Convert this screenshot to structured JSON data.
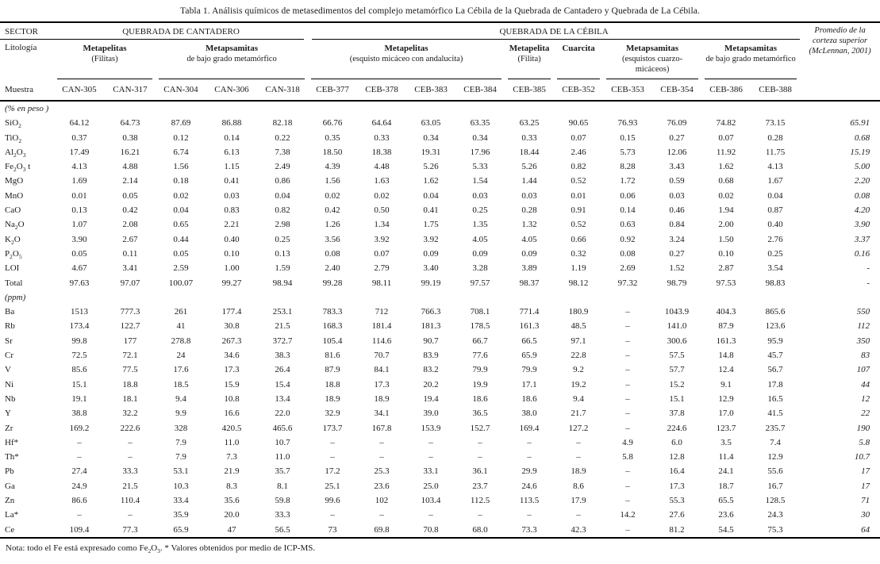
{
  "title": "Tabla 1. Análisis químicos de metasedimentos del complejo metamórfico La Cébila de la Quebrada de Cantadero y Quebrada de La Cébila.",
  "header": {
    "sector_label": "SECTOR",
    "sectors": [
      {
        "label": "QUEBRADA DE CANTADERO",
        "colspan": 5
      },
      {
        "label": "QUEBRADA DE LA CÉBILA",
        "colspan": 10
      }
    ],
    "litologia_label": "Litología",
    "lithologies": [
      {
        "name": "Metapelitas",
        "subtitle": "(Filitas)",
        "colspan": 2
      },
      {
        "name": "Metapsamitas",
        "subtitle": "de bajo grado metamórfico",
        "colspan": 3
      },
      {
        "name": "Metapelitas",
        "subtitle": "(esquisto micáceo con andalucita)",
        "colspan": 4
      },
      {
        "name": "Metapelita",
        "subtitle": "(Filita)",
        "colspan": 1
      },
      {
        "name": "Cuarcita",
        "subtitle": "",
        "colspan": 1
      },
      {
        "name": "Metapsamitas",
        "subtitle": "(esquistos cuarzo-micáceos)",
        "colspan": 2
      },
      {
        "name": "Metapsamitas",
        "subtitle": "de bajo grado metamórfico",
        "colspan": 2
      }
    ],
    "muestra_label": "Muestra",
    "samples": [
      "CAN-305",
      "CAN-317",
      "CAN-304",
      "CAN-306",
      "CAN-318",
      "CEB-377",
      "CEB-378",
      "CEB-383",
      "CEB-384",
      "CEB-385",
      "CEB-352",
      "CEB-353",
      "CEB-354",
      "CEB-386",
      "CEB-388"
    ],
    "average_header": "Promedio de la corteza superior (McLennan, 2001)"
  },
  "rows": [
    {
      "type": "section",
      "label": "(% en peso )"
    },
    {
      "type": "data",
      "label": "SiO₂",
      "values": [
        "64.12",
        "64.73",
        "87.69",
        "86.88",
        "82.18",
        "66.76",
        "64.64",
        "63.05",
        "63.35",
        "63.25",
        "90.65",
        "76.93",
        "76.09",
        "74.82",
        "73.15",
        "65.91"
      ]
    },
    {
      "type": "data",
      "label": "TiO₂",
      "values": [
        "0.37",
        "0.38",
        "0.12",
        "0.14",
        "0.22",
        "0.35",
        "0.33",
        "0.34",
        "0.34",
        "0.33",
        "0.07",
        "0.15",
        "0.27",
        "0.07",
        "0.28",
        "0.68"
      ]
    },
    {
      "type": "data",
      "label": "Al₂O₃",
      "values": [
        "17.49",
        "16.21",
        "6.74",
        "6.13",
        "7.38",
        "18.50",
        "18.38",
        "19.31",
        "17.96",
        "18.44",
        "2.46",
        "5.73",
        "12.06",
        "11.92",
        "11.75",
        "15.19"
      ]
    },
    {
      "type": "data",
      "label": "Fe₂O₃ t",
      "values": [
        "4.13",
        "4.88",
        "1.56",
        "1.15",
        "2.49",
        "4.39",
        "4.48",
        "5.26",
        "5.33",
        "5.26",
        "0.82",
        "8.28",
        "3.43",
        "1.62",
        "4.13",
        "5.00"
      ]
    },
    {
      "type": "data",
      "label": "MgO",
      "values": [
        "1.69",
        "2.14",
        "0.18",
        "0.41",
        "0.86",
        "1.56",
        "1.63",
        "1.62",
        "1.54",
        "1.44",
        "0.52",
        "1.72",
        "0.59",
        "0.68",
        "1.67",
        "2.20"
      ]
    },
    {
      "type": "data",
      "label": "MnO",
      "values": [
        "0.01",
        "0.05",
        "0.02",
        "0.03",
        "0.04",
        "0.02",
        "0.02",
        "0.04",
        "0.03",
        "0.03",
        "0.01",
        "0.06",
        "0.03",
        "0.02",
        "0.04",
        "0.08"
      ]
    },
    {
      "type": "data",
      "label": "CaO",
      "values": [
        "0.13",
        "0.42",
        "0.04",
        "0.83",
        "0.82",
        "0.42",
        "0.50",
        "0.41",
        "0.25",
        "0.28",
        "0.91",
        "0.14",
        "0.46",
        "1.94",
        "0.87",
        "4.20"
      ]
    },
    {
      "type": "data",
      "label": "Na₂O",
      "values": [
        "1.07",
        "2.08",
        "0.65",
        "2.21",
        "2.98",
        "1.26",
        "1.34",
        "1.75",
        "1.35",
        "1.32",
        "0.52",
        "0.63",
        "0.84",
        "2.00",
        "0.40",
        "3.90"
      ]
    },
    {
      "type": "data",
      "label": "K₂O",
      "values": [
        "3.90",
        "2.67",
        "0.44",
        "0.40",
        "0.25",
        "3.56",
        "3.92",
        "3.92",
        "4.05",
        "4.05",
        "0.66",
        "0.92",
        "3.24",
        "1.50",
        "2.76",
        "3.37"
      ]
    },
    {
      "type": "data",
      "label": "P₂O₅",
      "values": [
        "0.05",
        "0.11",
        "0.05",
        "0.10",
        "0.13",
        "0.08",
        "0.07",
        "0.09",
        "0.09",
        "0.09",
        "0.32",
        "0.08",
        "0.27",
        "0.10",
        "0.25",
        "0.16"
      ]
    },
    {
      "type": "data",
      "label": "LOI",
      "values": [
        "4.67",
        "3.41",
        "2.59",
        "1.00",
        "1.59",
        "2.40",
        "2.79",
        "3.40",
        "3.28",
        "3.89",
        "1.19",
        "2.69",
        "1.52",
        "2.87",
        "3.54",
        "-"
      ]
    },
    {
      "type": "data",
      "label": "Total",
      "values": [
        "97.63",
        "97.07",
        "100.07",
        "99.27",
        "98.94",
        "99.28",
        "98.11",
        "99.19",
        "97.57",
        "98.37",
        "98.12",
        "97.32",
        "98.79",
        "97.53",
        "98.83",
        "-"
      ]
    },
    {
      "type": "section",
      "label": "(ppm)"
    },
    {
      "type": "data",
      "label": "Ba",
      "values": [
        "1513",
        "777.3",
        "261",
        "177.4",
        "253.1",
        "783.3",
        "712",
        "766.3",
        "708.1",
        "771.4",
        "180.9",
        "–",
        "1043.9",
        "404.3",
        "865.6",
        "550"
      ]
    },
    {
      "type": "data",
      "label": "Rb",
      "values": [
        "173.4",
        "122.7",
        "41",
        "30.8",
        "21.5",
        "168.3",
        "181.4",
        "181.3",
        "178.5",
        "161.3",
        "48.5",
        "–",
        "141.0",
        "87.9",
        "123.6",
        "112"
      ]
    },
    {
      "type": "data",
      "label": "Sr",
      "values": [
        "99.8",
        "177",
        "278.8",
        "267.3",
        "372.7",
        "105.4",
        "114.6",
        "90.7",
        "66.7",
        "66.5",
        "97.1",
        "–",
        "300.6",
        "161.3",
        "95.9",
        "350"
      ]
    },
    {
      "type": "data",
      "label": "Cr",
      "values": [
        "72.5",
        "72.1",
        "24",
        "34.6",
        "38.3",
        "81.6",
        "70.7",
        "83.9",
        "77.6",
        "65.9",
        "22.8",
        "–",
        "57.5",
        "14.8",
        "45.7",
        "83"
      ]
    },
    {
      "type": "data",
      "label": "V",
      "values": [
        "85.6",
        "77.5",
        "17.6",
        "17.3",
        "26.4",
        "87.9",
        "84.1",
        "83.2",
        "79.9",
        "79.9",
        "9.2",
        "–",
        "57.7",
        "12.4",
        "56.7",
        "107"
      ]
    },
    {
      "type": "data",
      "label": "Ni",
      "values": [
        "15.1",
        "18.8",
        "18.5",
        "15.9",
        "15.4",
        "18.8",
        "17.3",
        "20.2",
        "19.9",
        "17.1",
        "19.2",
        "–",
        "15.2",
        "9.1",
        "17.8",
        "44"
      ]
    },
    {
      "type": "data",
      "label": "Nb",
      "values": [
        "19.1",
        "18.1",
        "9.4",
        "10.8",
        "13.4",
        "18.9",
        "18.9",
        "19.4",
        "18.6",
        "18.6",
        "9.4",
        "–",
        "15.1",
        "12.9",
        "16.5",
        "12"
      ]
    },
    {
      "type": "data",
      "label": "Y",
      "values": [
        "38.8",
        "32.2",
        "9.9",
        "16.6",
        "22.0",
        "32.9",
        "34.1",
        "39.0",
        "36.5",
        "38.0",
        "21.7",
        "–",
        "37.8",
        "17.0",
        "41.5",
        "22"
      ]
    },
    {
      "type": "data",
      "label": "Zr",
      "values": [
        "169.2",
        "222.6",
        "328",
        "420.5",
        "465.6",
        "173.7",
        "167.8",
        "153.9",
        "152.7",
        "169.4",
        "127.2",
        "–",
        "224.6",
        "123.7",
        "235.7",
        "190"
      ]
    },
    {
      "type": "data",
      "label": "Hf*",
      "values": [
        "–",
        "–",
        "7.9",
        "11.0",
        "10.7",
        "–",
        "–",
        "–",
        "–",
        "–",
        "–",
        "4.9",
        "6.0",
        "3.5",
        "7.4",
        "5.8"
      ]
    },
    {
      "type": "data",
      "label": "Th*",
      "values": [
        "–",
        "–",
        "7.9",
        "7.3",
        "11.0",
        "–",
        "–",
        "–",
        "–",
        "–",
        "–",
        "5.8",
        "12.8",
        "11.4",
        "12.9",
        "10.7"
      ]
    },
    {
      "type": "data",
      "label": "Pb",
      "values": [
        "27.4",
        "33.3",
        "53.1",
        "21.9",
        "35.7",
        "17.2",
        "25.3",
        "33.1",
        "36.1",
        "29.9",
        "18.9",
        "–",
        "16.4",
        "24.1",
        "55.6",
        "17"
      ]
    },
    {
      "type": "data",
      "label": "Ga",
      "values": [
        "24.9",
        "21.5",
        "10.3",
        "8.3",
        "8.1",
        "25.1",
        "23.6",
        "25.0",
        "23.7",
        "24.6",
        "8.6",
        "–",
        "17.3",
        "18.7",
        "16.7",
        "17"
      ]
    },
    {
      "type": "data",
      "label": "Zn",
      "values": [
        "86.6",
        "110.4",
        "33.4",
        "35.6",
        "59.8",
        "99.6",
        "102",
        "103.4",
        "112.5",
        "113.5",
        "17.9",
        "–",
        "55.3",
        "65.5",
        "128.5",
        "71"
      ]
    },
    {
      "type": "data",
      "label": "La*",
      "values": [
        "–",
        "–",
        "35.9",
        "20.0",
        "33.3",
        "–",
        "–",
        "–",
        "–",
        "–",
        "–",
        "14.2",
        "27.6",
        "23.6",
        "24.3",
        "30"
      ]
    },
    {
      "type": "data",
      "label": "Ce",
      "values": [
        "109.4",
        "77.3",
        "65.9",
        "47",
        "56.5",
        "73",
        "69.8",
        "70.8",
        "68.0",
        "73.3",
        "42.3",
        "–",
        "81.2",
        "54.5",
        "75.3",
        "64"
      ]
    }
  ],
  "note": "Nota: todo el Fe está expresado como Fe₂O₃. * Valores obtenidos por medio de ICP-MS."
}
